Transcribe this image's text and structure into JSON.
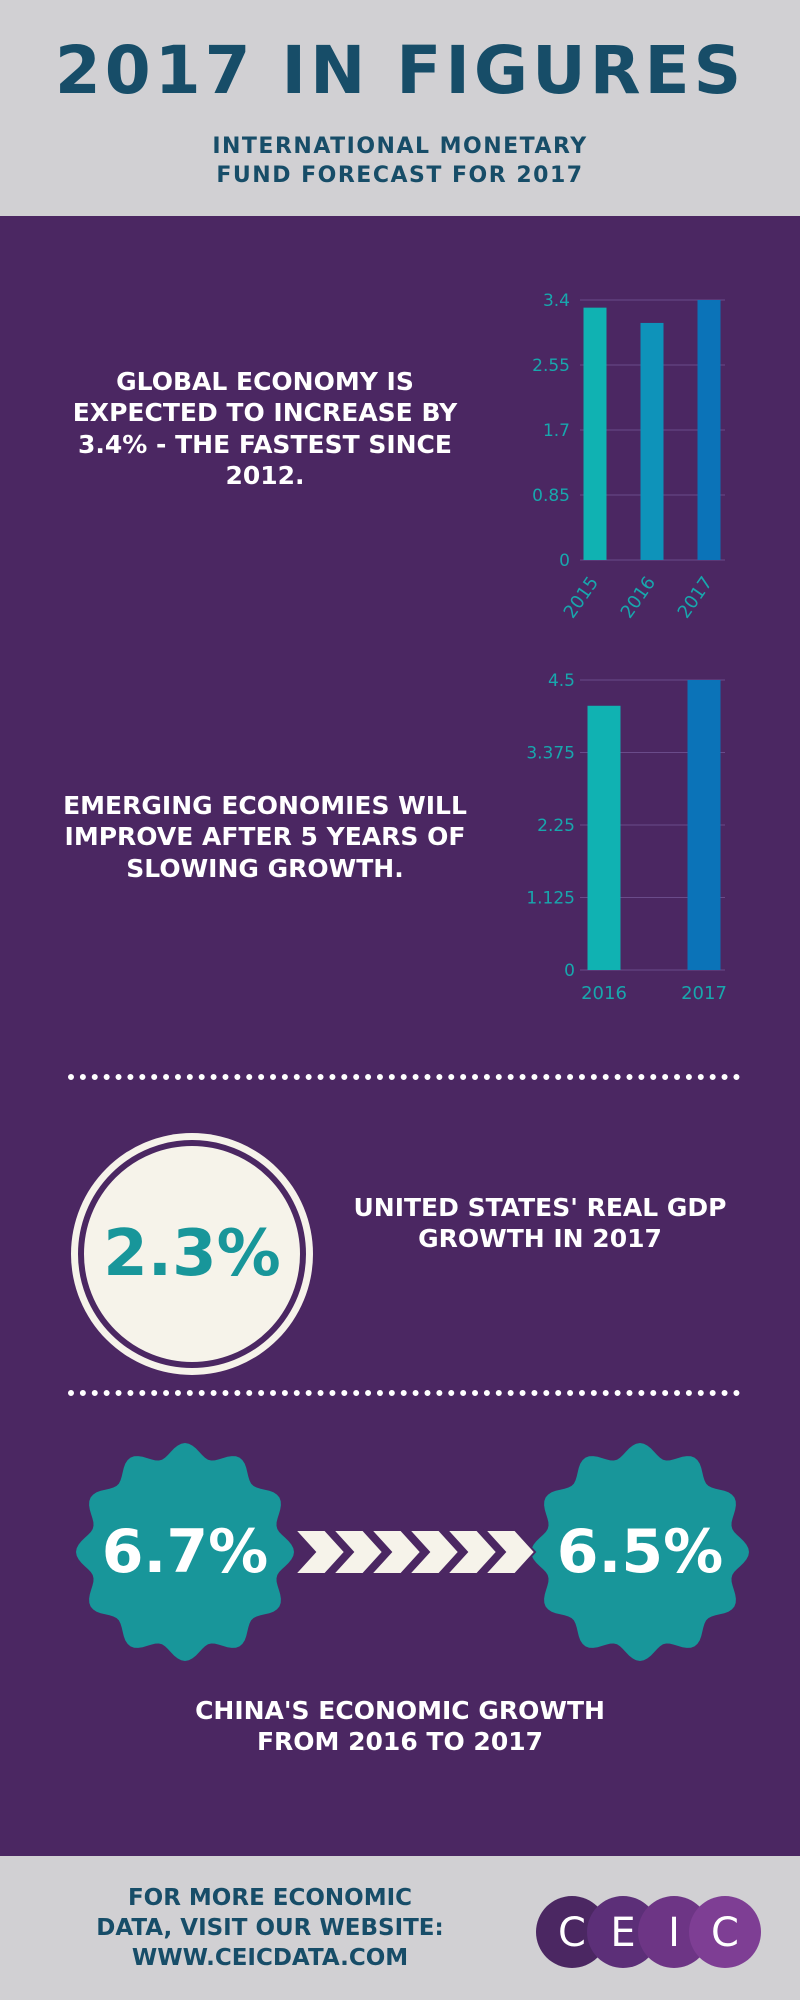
{
  "header": {
    "title": "2017 IN FIGURES",
    "subtitle_line1": "INTERNATIONAL MONETARY",
    "subtitle_line2": "FUND FORECAST FOR 2017"
  },
  "section1": {
    "text_lines": [
      "GLOBAL ECONOMY IS",
      "EXPECTED TO INCREASE BY",
      "3.4% - THE FASTEST SINCE",
      "2012."
    ]
  },
  "section2": {
    "text_lines": [
      "EMERGING ECONOMIES WILL",
      "IMPROVE AFTER  5 YEARS OF",
      "SLOWING GROWTH."
    ]
  },
  "section3": {
    "value": "2.3%",
    "text_lines": [
      "UNITED STATES' REAL GDP",
      "GROWTH IN 2017"
    ]
  },
  "section4": {
    "from_value": "6.7%",
    "to_value": "6.5%",
    "text_lines": [
      "CHINA'S ECONOMIC GROWTH",
      "FROM 2016 TO 2017"
    ]
  },
  "footer": {
    "text_lines": [
      "FOR MORE ECONOMIC",
      "DATA, VISIT OUR WEBSITE:",
      "WWW.CEICDATA.COM"
    ],
    "logo_letters": [
      "C",
      "E",
      "I",
      "C"
    ]
  },
  "colors": {
    "purple": "#4b2762",
    "navy": "#174d68",
    "teal": "#18969a",
    "gray": "#d1d0d3",
    "cream": "#f6f3ea"
  },
  "chart_data": [
    {
      "type": "bar",
      "categories": [
        "2015",
        "2016",
        "2017"
      ],
      "values": [
        3.3,
        3.1,
        3.4
      ],
      "ylim": [
        0,
        3.4
      ],
      "yticks": [
        "0",
        "0.85",
        "1.7",
        "2.55",
        "3.4"
      ],
      "colors": [
        "#10b2b2",
        "#0e93ba",
        "#0b73b8"
      ],
      "grid": true
    },
    {
      "type": "bar",
      "categories": [
        "2016",
        "2017"
      ],
      "values": [
        4.1,
        4.5
      ],
      "ylim": [
        0,
        4.5
      ],
      "yticks": [
        "0",
        "1.125",
        "2.25",
        "3.375",
        "4.5"
      ],
      "colors": [
        "#10b2b2",
        "#0b73b8"
      ],
      "grid": true
    }
  ]
}
